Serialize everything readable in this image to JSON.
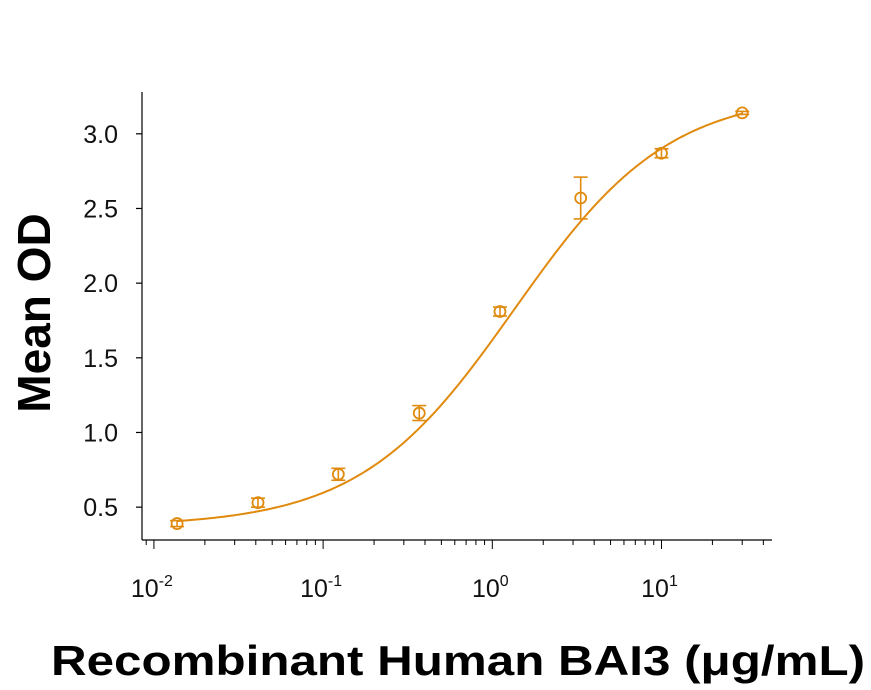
{
  "chart_data": {
    "type": "scatter",
    "xlabel": "Recombinant Human BAI3 (μg/mL)",
    "ylabel": "Mean OD",
    "xscale": "log",
    "xlim": [
      0.0085,
      45
    ],
    "ylim": [
      0.28,
      3.28
    ],
    "yticks": [
      "0.5",
      "1.0",
      "1.5",
      "2.0",
      "2.5",
      "3.0"
    ],
    "xticks": [
      {
        "value": 0.01,
        "base": "10",
        "exp": "-2"
      },
      {
        "value": 0.1,
        "base": "10",
        "exp": "-1"
      },
      {
        "value": 1,
        "base": "10",
        "exp": "0"
      },
      {
        "value": 10,
        "base": "10",
        "exp": "1"
      }
    ],
    "color": "#E08A0E",
    "points": [
      {
        "x": 0.0137,
        "y": 0.39,
        "err": 0.02
      },
      {
        "x": 0.0412,
        "y": 0.53,
        "err": 0.03
      },
      {
        "x": 0.123,
        "y": 0.72,
        "err": 0.04
      },
      {
        "x": 0.37,
        "y": 1.13,
        "err": 0.05
      },
      {
        "x": 1.11,
        "y": 1.81,
        "err": 0.03
      },
      {
        "x": 3.33,
        "y": 2.57,
        "err": 0.14
      },
      {
        "x": 10,
        "y": 2.87,
        "err": 0.03
      },
      {
        "x": 30,
        "y": 3.14,
        "err": 0.01
      }
    ],
    "fit": {
      "bottom": 0.37,
      "top": 3.28,
      "ec50": 1.35,
      "hill": 0.95
    },
    "grid": false,
    "legend": "none"
  }
}
